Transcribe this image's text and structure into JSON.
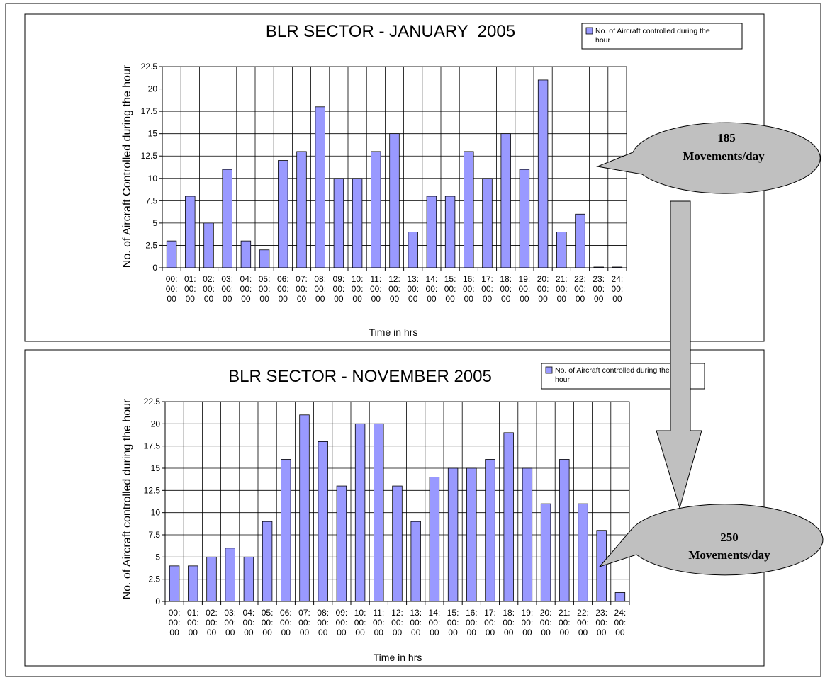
{
  "charts": [
    {
      "title": "BLR SECTOR - JANUARY  2005",
      "xlabel": "Time in hrs",
      "ylabel": "No. of Aircraft Controlled during the hour",
      "legend": "No. of Aircraft controlled during the hour",
      "callout": {
        "number": "185",
        "text": "Movements/day"
      }
    },
    {
      "title": "BLR SECTOR - NOVEMBER 2005",
      "xlabel": "Time in hrs",
      "ylabel": "No. of Aircraft controlled during the hour",
      "legend": "No. of Aircraft controlled during the hour",
      "callout": {
        "number": "250",
        "text": "Movements/day"
      }
    }
  ],
  "chart_data": [
    {
      "type": "bar",
      "title": "BLR SECTOR - JANUARY  2005",
      "xlabel": "Time in hrs",
      "ylabel": "No. of Aircraft Controlled during the hour",
      "categories": [
        "00:00:00",
        "01:00:00",
        "02:00:00",
        "03:00:00",
        "04:00:00",
        "05:00:00",
        "06:00:00",
        "07:00:00",
        "08:00:00",
        "09:00:00",
        "10:00:00",
        "11:00:00",
        "12:00:00",
        "13:00:00",
        "14:00:00",
        "15:00:00",
        "16:00:00",
        "17:00:00",
        "18:00:00",
        "19:00:00",
        "20:00:00",
        "21:00:00",
        "22:00:00",
        "23:00:00",
        "24:00:00"
      ],
      "series": [
        {
          "name": "No. of Aircraft controlled during the hour",
          "values": [
            3,
            8,
            5,
            11,
            3,
            2,
            12,
            13,
            18,
            10,
            10,
            13,
            15,
            4,
            8,
            8,
            13,
            10,
            15,
            11,
            21,
            4,
            6,
            0,
            0
          ]
        }
      ],
      "ylim": [
        0,
        22.5
      ],
      "yticks": [
        "0",
        "2.5",
        "5",
        "7.5",
        "10",
        "12.5",
        "15",
        "17.5",
        "20",
        "22.5"
      ],
      "grid": true,
      "legend_position": "top-right",
      "bar_color": "#9999ff"
    },
    {
      "type": "bar",
      "title": "BLR SECTOR - NOVEMBER 2005",
      "xlabel": "Time in hrs",
      "ylabel": "No. of Aircraft controlled during the hour",
      "categories": [
        "00:00:00",
        "01:00:00",
        "02:00:00",
        "03:00:00",
        "04:00:00",
        "05:00:00",
        "06:00:00",
        "07:00:00",
        "08:00:00",
        "09:00:00",
        "10:00:00",
        "11:00:00",
        "12:00:00",
        "13:00:00",
        "14:00:00",
        "15:00:00",
        "16:00:00",
        "17:00:00",
        "18:00:00",
        "19:00:00",
        "20:00:00",
        "21:00:00",
        "22:00:00",
        "23:00:00",
        "24:00:00"
      ],
      "series": [
        {
          "name": "No. of Aircraft controlled during the hour",
          "values": [
            4,
            4,
            5,
            6,
            5,
            9,
            16,
            21,
            18,
            13,
            20,
            20,
            13,
            9,
            14,
            15,
            15,
            16,
            19,
            15,
            11,
            16,
            11,
            8,
            1
          ]
        }
      ],
      "ylim": [
        0,
        22.5
      ],
      "yticks": [
        "0",
        "2.5",
        "5",
        "7.5",
        "10",
        "12.5",
        "15",
        "17.5",
        "20",
        "22.5"
      ],
      "grid": true,
      "legend_position": "top-right",
      "bar_color": "#9999ff"
    }
  ],
  "colors": {
    "bar": "#9999ff",
    "callout": "#c0c0c0",
    "arrow": "#c0c0c0"
  }
}
